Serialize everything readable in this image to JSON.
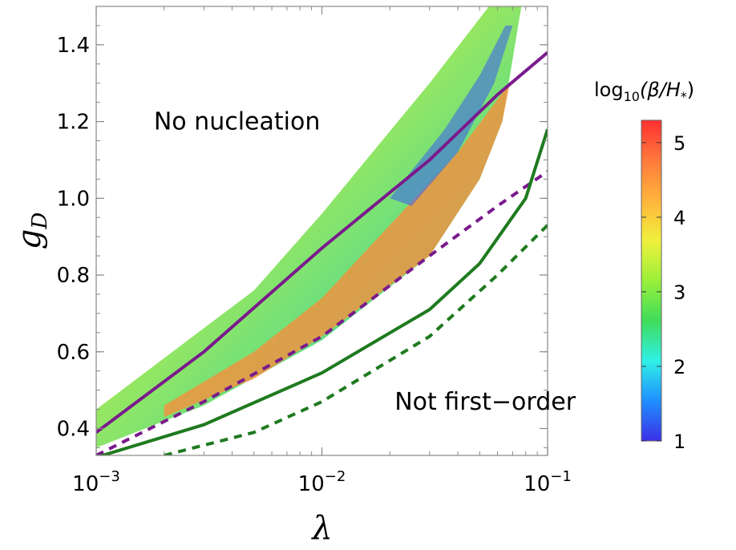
{
  "chart_data": {
    "type": "heatmap",
    "xlabel": "λ",
    "ylabel": "g",
    "ylabel_sub": "D",
    "xscale": "log",
    "xlim": [
      0.001,
      0.1
    ],
    "ylim": [
      0.33,
      1.5
    ],
    "x_ticks": [
      {
        "value": 0.001,
        "base": "10",
        "exp": "−3"
      },
      {
        "value": 0.01,
        "base": "10",
        "exp": "−2"
      },
      {
        "value": 0.1,
        "base": "10",
        "exp": "−1"
      }
    ],
    "y_ticks": [
      {
        "value": 0.4,
        "label": "0.4"
      },
      {
        "value": 0.6,
        "label": "0.6"
      },
      {
        "value": 0.8,
        "label": "0.8"
      },
      {
        "value": 1.0,
        "label": "1.0"
      },
      {
        "value": 1.2,
        "label": "1.2"
      },
      {
        "value": 1.4,
        "label": "1.4"
      }
    ],
    "annotations": [
      {
        "text": "No nucleation",
        "x": 0.0018,
        "y": 1.2
      },
      {
        "text": "Not first−order",
        "x": 0.021,
        "y": 0.47
      }
    ],
    "colorbar": {
      "title_prefix": "log",
      "title_sub": "10",
      "title_body": "(β/H",
      "title_sub2": "*",
      "title_suffix": ")",
      "min": 1,
      "max": 5.3,
      "ticks": [
        {
          "value": 1,
          "label": "1"
        },
        {
          "value": 2,
          "label": "2"
        },
        {
          "value": 3,
          "label": "3"
        },
        {
          "value": 4,
          "label": "4"
        },
        {
          "value": 5,
          "label": "5"
        }
      ],
      "colors": [
        "#3b2fe6",
        "#1f8fff",
        "#2ff0e6",
        "#3fdc5a",
        "#9af03a",
        "#f0f03c",
        "#ffb43c",
        "#ff7a3c",
        "#ff3030"
      ]
    },
    "region": {
      "upper": [
        [
          0.001,
          0.45
        ],
        [
          0.005,
          0.76
        ],
        [
          0.01,
          0.96
        ],
        [
          0.03,
          1.3
        ],
        [
          0.055,
          1.5
        ],
        [
          0.0765,
          1.5
        ]
      ],
      "lower": [
        [
          0.001,
          0.35
        ],
        [
          0.003,
          0.46
        ],
        [
          0.01,
          0.63
        ],
        [
          0.03,
          0.85
        ],
        [
          0.05,
          1.05
        ],
        [
          0.063,
          1.2
        ],
        [
          0.0765,
          1.5
        ]
      ]
    },
    "series": [
      {
        "name": "purple-solid",
        "color": "#7a1a8c",
        "dash": "solid",
        "x": [
          0.001,
          0.003,
          0.01,
          0.03,
          0.06,
          0.1
        ],
        "y": [
          0.39,
          0.6,
          0.87,
          1.1,
          1.27,
          1.38
        ]
      },
      {
        "name": "purple-dashed",
        "color": "#7a1a8c",
        "dash": "dashed",
        "x": [
          0.001,
          0.003,
          0.01,
          0.03,
          0.06,
          0.1
        ],
        "y": [
          0.33,
          0.47,
          0.64,
          0.85,
          0.98,
          1.07
        ]
      },
      {
        "name": "green-solid",
        "color": "#1f7a1f",
        "dash": "solid",
        "x": [
          0.001,
          0.003,
          0.01,
          0.03,
          0.05,
          0.08,
          0.1
        ],
        "y": [
          0.325,
          0.41,
          0.545,
          0.71,
          0.83,
          1.0,
          1.18
        ]
      },
      {
        "name": "green-dashed",
        "color": "#1f7a1f",
        "dash": "dashed",
        "x": [
          0.002,
          0.005,
          0.01,
          0.03,
          0.06,
          0.1
        ],
        "y": [
          0.33,
          0.39,
          0.47,
          0.64,
          0.8,
          0.93
        ]
      }
    ]
  }
}
